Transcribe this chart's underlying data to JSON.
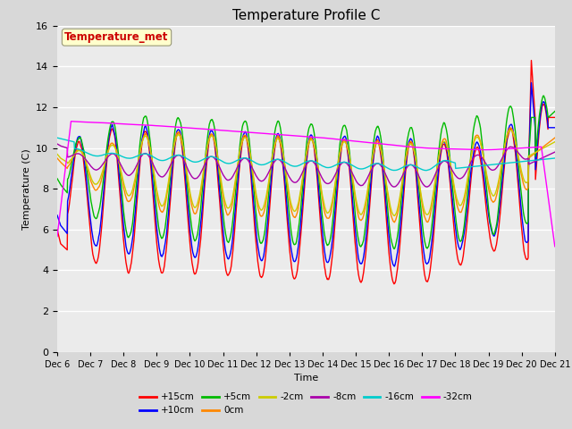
{
  "title": "Temperature Profile C",
  "xlabel": "Time",
  "ylabel": "Temperature (C)",
  "ylim": [
    0,
    16
  ],
  "xlim": [
    0,
    15
  ],
  "x_tick_labels": [
    "Dec 6",
    "Dec 7",
    "Dec 8",
    "Dec 9",
    "Dec 10",
    "Dec 11",
    "Dec 12",
    "Dec 13",
    "Dec 14",
    "Dec 15",
    "Dec 16",
    "Dec 17",
    "Dec 18",
    "Dec 19",
    "Dec 20",
    "Dec 21"
  ],
  "colors": {
    "+15cm": "#ff0000",
    "+10cm": "#0000ff",
    "+5cm": "#00bb00",
    "0cm": "#ff8800",
    "-2cm": "#cccc00",
    "-8cm": "#aa00aa",
    "-16cm": "#00cccc",
    "-32cm": "#ff00ff"
  },
  "fig_bg": "#d8d8d8",
  "plot_bg": "#ebebeb",
  "grid_color": "#ffffff",
  "title_fontsize": 11,
  "label_fontsize": 8,
  "tick_fontsize": 7
}
